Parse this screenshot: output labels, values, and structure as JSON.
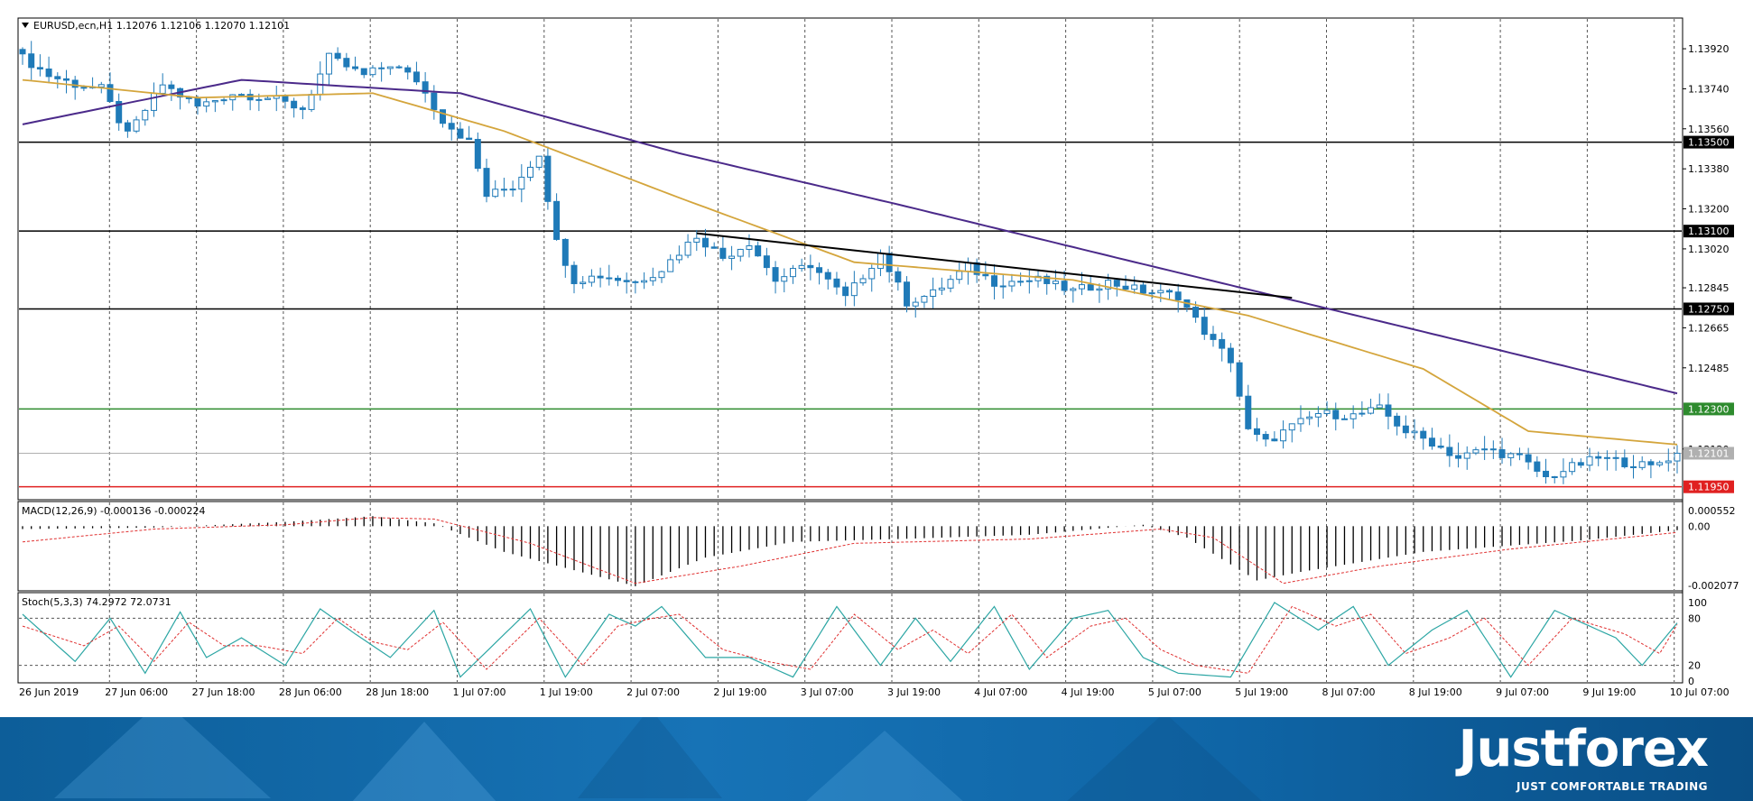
{
  "colors": {
    "candle_bull": "#ffffff",
    "candle_bear": "#1f7ab8",
    "candle_outline": "#1f7ab8",
    "ma_fast": "#d4a53c",
    "ma_slow": "#4b2a8a",
    "macd_signal": "#e03030",
    "stoch_main": "#2ca6a4",
    "stoch_signal": "#e03030",
    "level_black": "#000000",
    "level_green": "#2e8b2e",
    "level_red": "#e02020",
    "footer_bg": "#1773b6"
  },
  "header": {
    "symbol_line": "EURUSD,ecn,H1  1.12076 1.12106 1.12070 1.12101"
  },
  "chart_data": [
    {
      "type": "candlestick",
      "title": "EURUSD,ecn,H1",
      "ohlc_last": {
        "open": 1.12076,
        "high": 1.12106,
        "low": 1.1207,
        "close": 1.12101
      },
      "ylim": [
        1.119,
        1.1405
      ],
      "y_ticks": [
        "1.13920",
        "1.13740",
        "1.13560",
        "1.13380",
        "1.13200",
        "1.13020",
        "1.12845",
        "1.12665",
        "1.12485",
        "1.12120"
      ],
      "y_tick_values": [
        1.1392,
        1.1374,
        1.1356,
        1.1338,
        1.132,
        1.1302,
        1.12845,
        1.12665,
        1.12485,
        1.1212
      ],
      "horizontal_levels": [
        {
          "label": "1.13500",
          "value": 1.135,
          "color": "black"
        },
        {
          "label": "1.13100",
          "value": 1.131,
          "color": "black"
        },
        {
          "label": "1.12750",
          "value": 1.1275,
          "color": "black"
        },
        {
          "label": "1.12300",
          "value": 1.123,
          "color": "green"
        },
        {
          "label": "1.12101",
          "value": 1.12101,
          "color": "gray"
        },
        {
          "label": "1.11950",
          "value": 1.1195,
          "color": "red"
        }
      ],
      "trendline": {
        "from_bar": 77,
        "from_value": 1.1309,
        "to_bar": 145,
        "to_value": 1.128
      },
      "x_labels": [
        "26 Jun 2019",
        "27 Jun 06:00",
        "27 Jun 18:00",
        "28 Jun 06:00",
        "28 Jun 18:00",
        "1 Jul 07:00",
        "1 Jul 19:00",
        "2 Jul 07:00",
        "2 Jul 19:00",
        "3 Jul 07:00",
        "3 Jul 19:00",
        "4 Jul 07:00",
        "4 Jul 19:00",
        "5 Jul 07:00",
        "5 Jul 19:00",
        "8 Jul 07:00",
        "8 Jul 19:00",
        "9 Jul 07:00",
        "9 Jul 19:00",
        "10 Jul 07:00"
      ],
      "close_anchors": [
        [
          0,
          1.1388
        ],
        [
          3,
          1.138
        ],
        [
          6,
          1.1376
        ],
        [
          9,
          1.1374
        ],
        [
          12,
          1.1353
        ],
        [
          16,
          1.1376
        ],
        [
          20,
          1.1366
        ],
        [
          24,
          1.1372
        ],
        [
          28,
          1.137
        ],
        [
          32,
          1.1365
        ],
        [
          35,
          1.1388
        ],
        [
          39,
          1.138
        ],
        [
          42,
          1.1385
        ],
        [
          45,
          1.1378
        ],
        [
          48,
          1.136
        ],
        [
          51,
          1.135
        ],
        [
          53,
          1.1326
        ],
        [
          56,
          1.133
        ],
        [
          59,
          1.1345
        ],
        [
          61,
          1.1305
        ],
        [
          63,
          1.1288
        ],
        [
          66,
          1.129
        ],
        [
          70,
          1.1287
        ],
        [
          73,
          1.1293
        ],
        [
          77,
          1.1308
        ],
        [
          80,
          1.1298
        ],
        [
          83,
          1.1305
        ],
        [
          86,
          1.1288
        ],
        [
          90,
          1.1295
        ],
        [
          94,
          1.128
        ],
        [
          98,
          1.13
        ],
        [
          101,
          1.1278
        ],
        [
          104,
          1.1282
        ],
        [
          108,
          1.1294
        ],
        [
          111,
          1.1287
        ],
        [
          116,
          1.1288
        ],
        [
          120,
          1.1283
        ],
        [
          124,
          1.1287
        ],
        [
          128,
          1.1283
        ],
        [
          132,
          1.1281
        ],
        [
          134,
          1.127
        ],
        [
          136,
          1.126
        ],
        [
          138,
          1.1252
        ],
        [
          140,
          1.122
        ],
        [
          142,
          1.1215
        ],
        [
          145,
          1.1222
        ],
        [
          148,
          1.1228
        ],
        [
          152,
          1.1227
        ],
        [
          155,
          1.123
        ],
        [
          158,
          1.122
        ],
        [
          161,
          1.1215
        ],
        [
          164,
          1.1208
        ],
        [
          167,
          1.1212
        ],
        [
          171,
          1.1208
        ],
        [
          174,
          1.1199
        ],
        [
          177,
          1.1204
        ],
        [
          180,
          1.1208
        ],
        [
          183,
          1.1206
        ],
        [
          186,
          1.1204
        ],
        [
          189,
          1.12101
        ]
      ],
      "ma_fast_anchors": [
        [
          0,
          1.1378
        ],
        [
          20,
          1.137
        ],
        [
          40,
          1.1372
        ],
        [
          55,
          1.1355
        ],
        [
          75,
          1.1325
        ],
        [
          95,
          1.1296
        ],
        [
          120,
          1.1288
        ],
        [
          140,
          1.1272
        ],
        [
          160,
          1.1248
        ],
        [
          172,
          1.122
        ],
        [
          189,
          1.1214
        ]
      ],
      "ma_slow_anchors": [
        [
          0,
          1.1358
        ],
        [
          25,
          1.1378
        ],
        [
          50,
          1.1372
        ],
        [
          75,
          1.1345
        ],
        [
          100,
          1.1322
        ],
        [
          125,
          1.1298
        ],
        [
          145,
          1.1279
        ],
        [
          165,
          1.126
        ],
        [
          189,
          1.1237
        ]
      ]
    },
    {
      "type": "bar",
      "title": "MACD(12,26,9) -0.000136 -0.000224",
      "ylim": [
        -0.0022,
        0.0008
      ],
      "y_ticks": [
        "0.000552",
        "0.00",
        "-0.002077"
      ],
      "y_tick_values": [
        0.000552,
        0.0,
        -0.002077
      ],
      "hist_anchors": [
        [
          0,
          -0.0001
        ],
        [
          15,
          -5e-05
        ],
        [
          30,
          0.00015
        ],
        [
          40,
          0.00035
        ],
        [
          47,
          0.0001
        ],
        [
          55,
          -0.0009
        ],
        [
          65,
          -0.0017
        ],
        [
          70,
          -0.0021
        ],
        [
          78,
          -0.0011
        ],
        [
          88,
          -0.00055
        ],
        [
          100,
          -0.00045
        ],
        [
          115,
          -0.0003
        ],
        [
          128,
          5e-05
        ],
        [
          133,
          -0.0004
        ],
        [
          141,
          -0.0019
        ],
        [
          146,
          -0.0016
        ],
        [
          160,
          -0.0009
        ],
        [
          178,
          -0.0005
        ],
        [
          189,
          -0.00014
        ]
      ],
      "signal_anchors": [
        [
          0,
          -0.00055
        ],
        [
          15,
          -0.0001
        ],
        [
          30,
          5e-05
        ],
        [
          40,
          0.0003
        ],
        [
          47,
          0.00025
        ],
        [
          58,
          -0.0006
        ],
        [
          70,
          -0.002
        ],
        [
          82,
          -0.0014
        ],
        [
          95,
          -0.0006
        ],
        [
          115,
          -0.00045
        ],
        [
          130,
          -0.0001
        ],
        [
          136,
          -0.0004
        ],
        [
          144,
          -0.002
        ],
        [
          155,
          -0.0014
        ],
        [
          170,
          -0.0008
        ],
        [
          189,
          -0.00022
        ]
      ]
    },
    {
      "type": "line",
      "title": "Stoch(5,3,3) 74.2972 72.0731",
      "ylim": [
        0,
        100
      ],
      "y_ticks": [
        "100",
        "80",
        "20",
        "0"
      ],
      "y_tick_values": [
        100,
        80,
        20,
        0
      ],
      "main_anchors": [
        [
          0,
          85
        ],
        [
          6,
          25
        ],
        [
          10,
          80
        ],
        [
          14,
          10
        ],
        [
          18,
          88
        ],
        [
          21,
          30
        ],
        [
          25,
          55
        ],
        [
          30,
          20
        ],
        [
          34,
          92
        ],
        [
          38,
          60
        ],
        [
          42,
          30
        ],
        [
          47,
          90
        ],
        [
          50,
          5
        ],
        [
          58,
          92
        ],
        [
          62,
          5
        ],
        [
          67,
          85
        ],
        [
          70,
          70
        ],
        [
          73,
          95
        ],
        [
          78,
          30
        ],
        [
          83,
          30
        ],
        [
          88,
          5
        ],
        [
          93,
          95
        ],
        [
          98,
          20
        ],
        [
          102,
          80
        ],
        [
          106,
          25
        ],
        [
          111,
          95
        ],
        [
          115,
          15
        ],
        [
          120,
          80
        ],
        [
          124,
          90
        ],
        [
          128,
          30
        ],
        [
          132,
          10
        ],
        [
          138,
          5
        ],
        [
          143,
          100
        ],
        [
          148,
          65
        ],
        [
          152,
          95
        ],
        [
          156,
          20
        ],
        [
          161,
          65
        ],
        [
          165,
          90
        ],
        [
          170,
          5
        ],
        [
          175,
          90
        ],
        [
          182,
          55
        ],
        [
          185,
          20
        ],
        [
          189,
          74
        ]
      ],
      "signal_anchors": [
        [
          0,
          70
        ],
        [
          7,
          45
        ],
        [
          11,
          70
        ],
        [
          15,
          25
        ],
        [
          19,
          75
        ],
        [
          23,
          45
        ],
        [
          27,
          45
        ],
        [
          32,
          35
        ],
        [
          36,
          80
        ],
        [
          40,
          50
        ],
        [
          44,
          40
        ],
        [
          48,
          75
        ],
        [
          53,
          15
        ],
        [
          59,
          80
        ],
        [
          64,
          20
        ],
        [
          68,
          70
        ],
        [
          72,
          80
        ],
        [
          75,
          85
        ],
        [
          80,
          40
        ],
        [
          85,
          25
        ],
        [
          90,
          15
        ],
        [
          95,
          85
        ],
        [
          100,
          40
        ],
        [
          104,
          65
        ],
        [
          108,
          35
        ],
        [
          113,
          85
        ],
        [
          117,
          30
        ],
        [
          122,
          70
        ],
        [
          126,
          80
        ],
        [
          130,
          40
        ],
        [
          134,
          20
        ],
        [
          140,
          10
        ],
        [
          145,
          95
        ],
        [
          150,
          70
        ],
        [
          154,
          85
        ],
        [
          158,
          35
        ],
        [
          163,
          55
        ],
        [
          167,
          80
        ],
        [
          172,
          20
        ],
        [
          177,
          80
        ],
        [
          183,
          60
        ],
        [
          187,
          35
        ],
        [
          189,
          72
        ]
      ]
    }
  ],
  "footer": {
    "brand": "Justforex",
    "tagline": "JUST COMFORTABLE TRADING"
  }
}
